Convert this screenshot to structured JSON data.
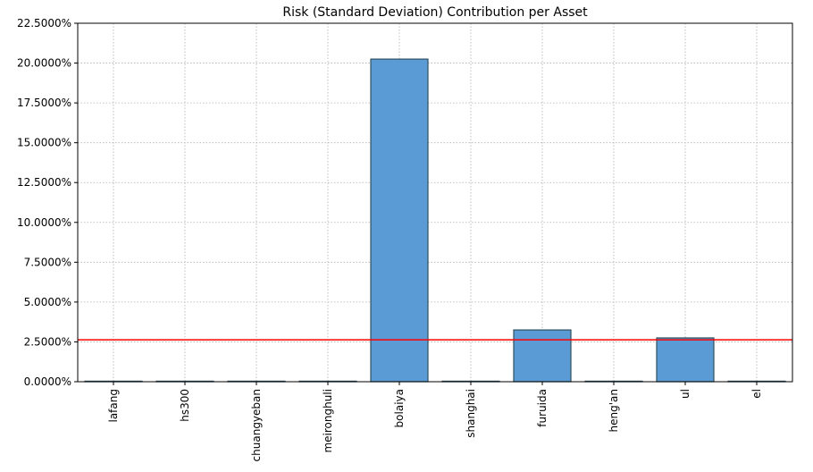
{
  "chart_data": {
    "type": "bar",
    "title": "Risk (Standard Deviation) Contribution per Asset",
    "xlabel": "",
    "ylabel": "",
    "categories": [
      "lafang",
      "hs300",
      "chuangyeban",
      "meironghuli",
      "bolaiya",
      "shanghai",
      "furuida",
      "heng'an",
      "ul",
      "el"
    ],
    "values": [
      0.0,
      0.0,
      0.0,
      0.0,
      20.25,
      0.0,
      3.25,
      0.0,
      2.75,
      0.0
    ],
    "value_format": "percent_4dp",
    "ylim": [
      0,
      22.5
    ],
    "yticks": [
      0,
      2.5,
      5,
      7.5,
      10,
      12.5,
      15,
      17.5,
      20,
      22.5
    ],
    "ytick_labels": [
      "0.0000%",
      "2.5000%",
      "5.0000%",
      "7.5000%",
      "10.0000%",
      "12.5000%",
      "15.0000%",
      "17.5000%",
      "20.0000%",
      "22.5000%"
    ],
    "reference_line": {
      "value": 2.63,
      "color": "#ff0000"
    },
    "grid": true,
    "legend": "none",
    "bar_color": "#5b9bd5",
    "bar_edge_color": "#2f4f5f"
  }
}
